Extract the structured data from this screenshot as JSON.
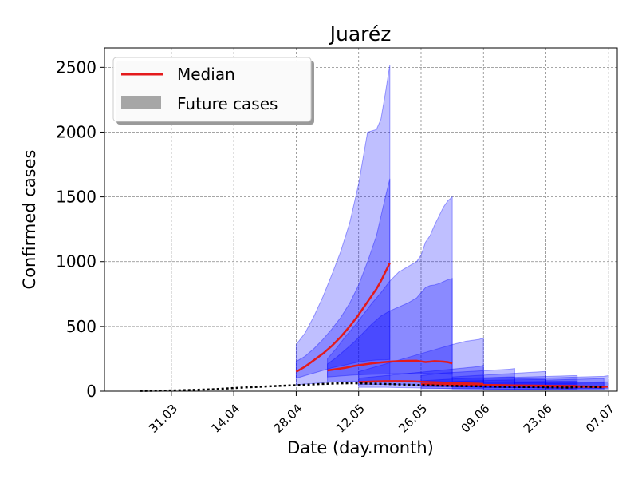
{
  "chart_data": {
    "type": "area",
    "title": "Juaréz",
    "xlabel": "Date (day.month)",
    "ylabel": "Confirmed cases",
    "x_unit": "day of year 2020",
    "xlim": [
      76,
      191
    ],
    "ylim": [
      0,
      2650
    ],
    "xticks": [
      {
        "x": 91,
        "label": "31.03"
      },
      {
        "x": 105,
        "label": "14.04"
      },
      {
        "x": 119,
        "label": "28.04"
      },
      {
        "x": 133,
        "label": "12.05"
      },
      {
        "x": 147,
        "label": "26.05"
      },
      {
        "x": 161,
        "label": "09.06"
      },
      {
        "x": 175,
        "label": "23.06"
      },
      {
        "x": 189,
        "label": "07.07"
      }
    ],
    "yticks": [
      0,
      500,
      1000,
      1500,
      2000,
      2500
    ],
    "grid": true,
    "legend": {
      "position": "top-left",
      "entries": [
        {
          "label": "Median",
          "kind": "line",
          "color": "#e41a1c"
        },
        {
          "label": "Future cases",
          "kind": "patch",
          "color": "#a6a6a6"
        }
      ]
    },
    "colors": {
      "band": "#0000ff",
      "median": "#e41a1c",
      "observed": "#000000"
    },
    "observed": {
      "x": [
        84,
        88,
        92,
        96,
        100,
        104,
        108,
        112,
        116,
        120,
        124,
        128,
        132,
        136,
        140,
        144,
        148,
        152,
        156,
        160,
        164,
        168,
        172,
        176,
        180,
        184,
        188
      ],
      "y": [
        2,
        4,
        6,
        10,
        14,
        22,
        30,
        36,
        42,
        48,
        55,
        60,
        62,
        58,
        55,
        50,
        46,
        42,
        40,
        38,
        35,
        33,
        32,
        30,
        28,
        35,
        30
      ]
    },
    "forecasts": [
      {
        "x": [
          119,
          121,
          123,
          125,
          127,
          129,
          131,
          133,
          135,
          137,
          138,
          139,
          140
        ],
        "median": [
          150,
          190,
          240,
          290,
          350,
          420,
          500,
          590,
          690,
          790,
          850,
          920,
          990
        ],
        "inner_lo": [
          100,
          120,
          140,
          160,
          180,
          195,
          210,
          225,
          235,
          240,
          242,
          243,
          245
        ],
        "inner_hi": [
          230,
          270,
          330,
          400,
          480,
          570,
          680,
          820,
          1000,
          1200,
          1350,
          1500,
          1640
        ],
        "outer_lo": [
          50,
          55,
          60,
          65,
          70,
          70,
          70,
          70,
          70,
          70,
          70,
          70,
          70
        ],
        "outer_hi": [
          360,
          450,
          580,
          730,
          900,
          1080,
          1300,
          1600,
          2000,
          2020,
          2100,
          2300,
          2520
        ]
      },
      {
        "x": [
          126,
          128,
          130,
          132,
          134,
          136,
          138,
          140,
          142,
          144,
          146,
          147,
          148,
          149,
          150,
          151,
          152,
          153,
          154
        ],
        "median": [
          160,
          170,
          180,
          195,
          205,
          215,
          222,
          228,
          232,
          234,
          235,
          230,
          225,
          228,
          232,
          230,
          228,
          224,
          215
        ],
        "inner_lo": [
          110,
          115,
          120,
          125,
          128,
          130,
          132,
          134,
          136,
          138,
          140,
          140,
          138,
          136,
          135,
          134,
          133,
          132,
          130
        ],
        "inner_hi": [
          210,
          260,
          320,
          380,
          450,
          520,
          580,
          620,
          650,
          680,
          720,
          760,
          800,
          815,
          820,
          830,
          845,
          860,
          870
        ],
        "outer_lo": [
          70,
          72,
          74,
          76,
          78,
          78,
          78,
          78,
          78,
          78,
          78,
          78,
          78,
          78,
          78,
          78,
          78,
          78,
          78
        ],
        "outer_hi": [
          250,
          330,
          420,
          500,
          590,
          680,
          760,
          850,
          920,
          960,
          1000,
          1050,
          1150,
          1200,
          1280,
          1350,
          1420,
          1470,
          1500
        ]
      },
      {
        "x": [
          133,
          136,
          139,
          142,
          145,
          148,
          151,
          154,
          157,
          160,
          161
        ],
        "median": [
          70,
          75,
          78,
          78,
          76,
          72,
          68,
          64,
          60,
          58,
          55
        ],
        "inner_lo": [
          50,
          52,
          52,
          50,
          48,
          45,
          42,
          40,
          38,
          36,
          35
        ],
        "inner_hi": [
          100,
          110,
          120,
          130,
          140,
          150,
          160,
          170,
          180,
          190,
          200
        ],
        "outer_lo": [
          30,
          30,
          30,
          28,
          26,
          24,
          22,
          20,
          20,
          20,
          20
        ],
        "outer_hi": [
          150,
          180,
          210,
          240,
          270,
          300,
          330,
          360,
          385,
          400,
          410
        ]
      },
      {
        "x": [
          147,
          152,
          157,
          162,
          167,
          168
        ],
        "median": [
          55,
          52,
          50,
          48,
          45,
          44
        ],
        "inner_lo": [
          35,
          34,
          32,
          30,
          28,
          28
        ],
        "inner_hi": [
          80,
          90,
          100,
          105,
          110,
          110
        ],
        "outer_lo": [
          20,
          20,
          18,
          17,
          16,
          16
        ],
        "outer_hi": [
          120,
          140,
          150,
          160,
          170,
          175
        ]
      },
      {
        "x": [
          154,
          159,
          164,
          169,
          174,
          175
        ],
        "median": [
          50,
          48,
          46,
          44,
          42,
          42
        ],
        "inner_lo": [
          32,
          30,
          28,
          27,
          26,
          26
        ],
        "inner_hi": [
          75,
          80,
          85,
          88,
          90,
          90
        ],
        "outer_lo": [
          18,
          17,
          16,
          15,
          14,
          14
        ],
        "outer_hi": [
          110,
          120,
          130,
          140,
          150,
          152
        ]
      },
      {
        "x": [
          161,
          166,
          171,
          176,
          181,
          182
        ],
        "median": [
          45,
          44,
          42,
          41,
          40,
          40
        ],
        "inner_lo": [
          28,
          27,
          26,
          25,
          24,
          24
        ],
        "inner_hi": [
          70,
          72,
          74,
          76,
          78,
          78
        ],
        "outer_lo": [
          16,
          15,
          14,
          13,
          12,
          12
        ],
        "outer_hi": [
          100,
          105,
          110,
          115,
          120,
          120
        ]
      },
      {
        "x": [
          168,
          173,
          178,
          183,
          188,
          189
        ],
        "median": [
          42,
          40,
          38,
          37,
          35,
          35
        ],
        "inner_lo": [
          26,
          25,
          24,
          23,
          22,
          22
        ],
        "inner_hi": [
          65,
          67,
          69,
          70,
          72,
          72
        ],
        "outer_lo": [
          14,
          13,
          12,
          12,
          11,
          11
        ],
        "outer_hi": [
          95,
          100,
          105,
          110,
          115,
          120
        ]
      },
      {
        "x": [
          175,
          180,
          185,
          188
        ],
        "median": [
          38,
          36,
          34,
          33
        ],
        "inner_lo": [
          22,
          21,
          20,
          20
        ],
        "inner_hi": [
          60,
          62,
          64,
          65
        ],
        "outer_lo": [
          12,
          11,
          10,
          10
        ],
        "outer_hi": [
          85,
          90,
          95,
          98
        ]
      }
    ]
  }
}
